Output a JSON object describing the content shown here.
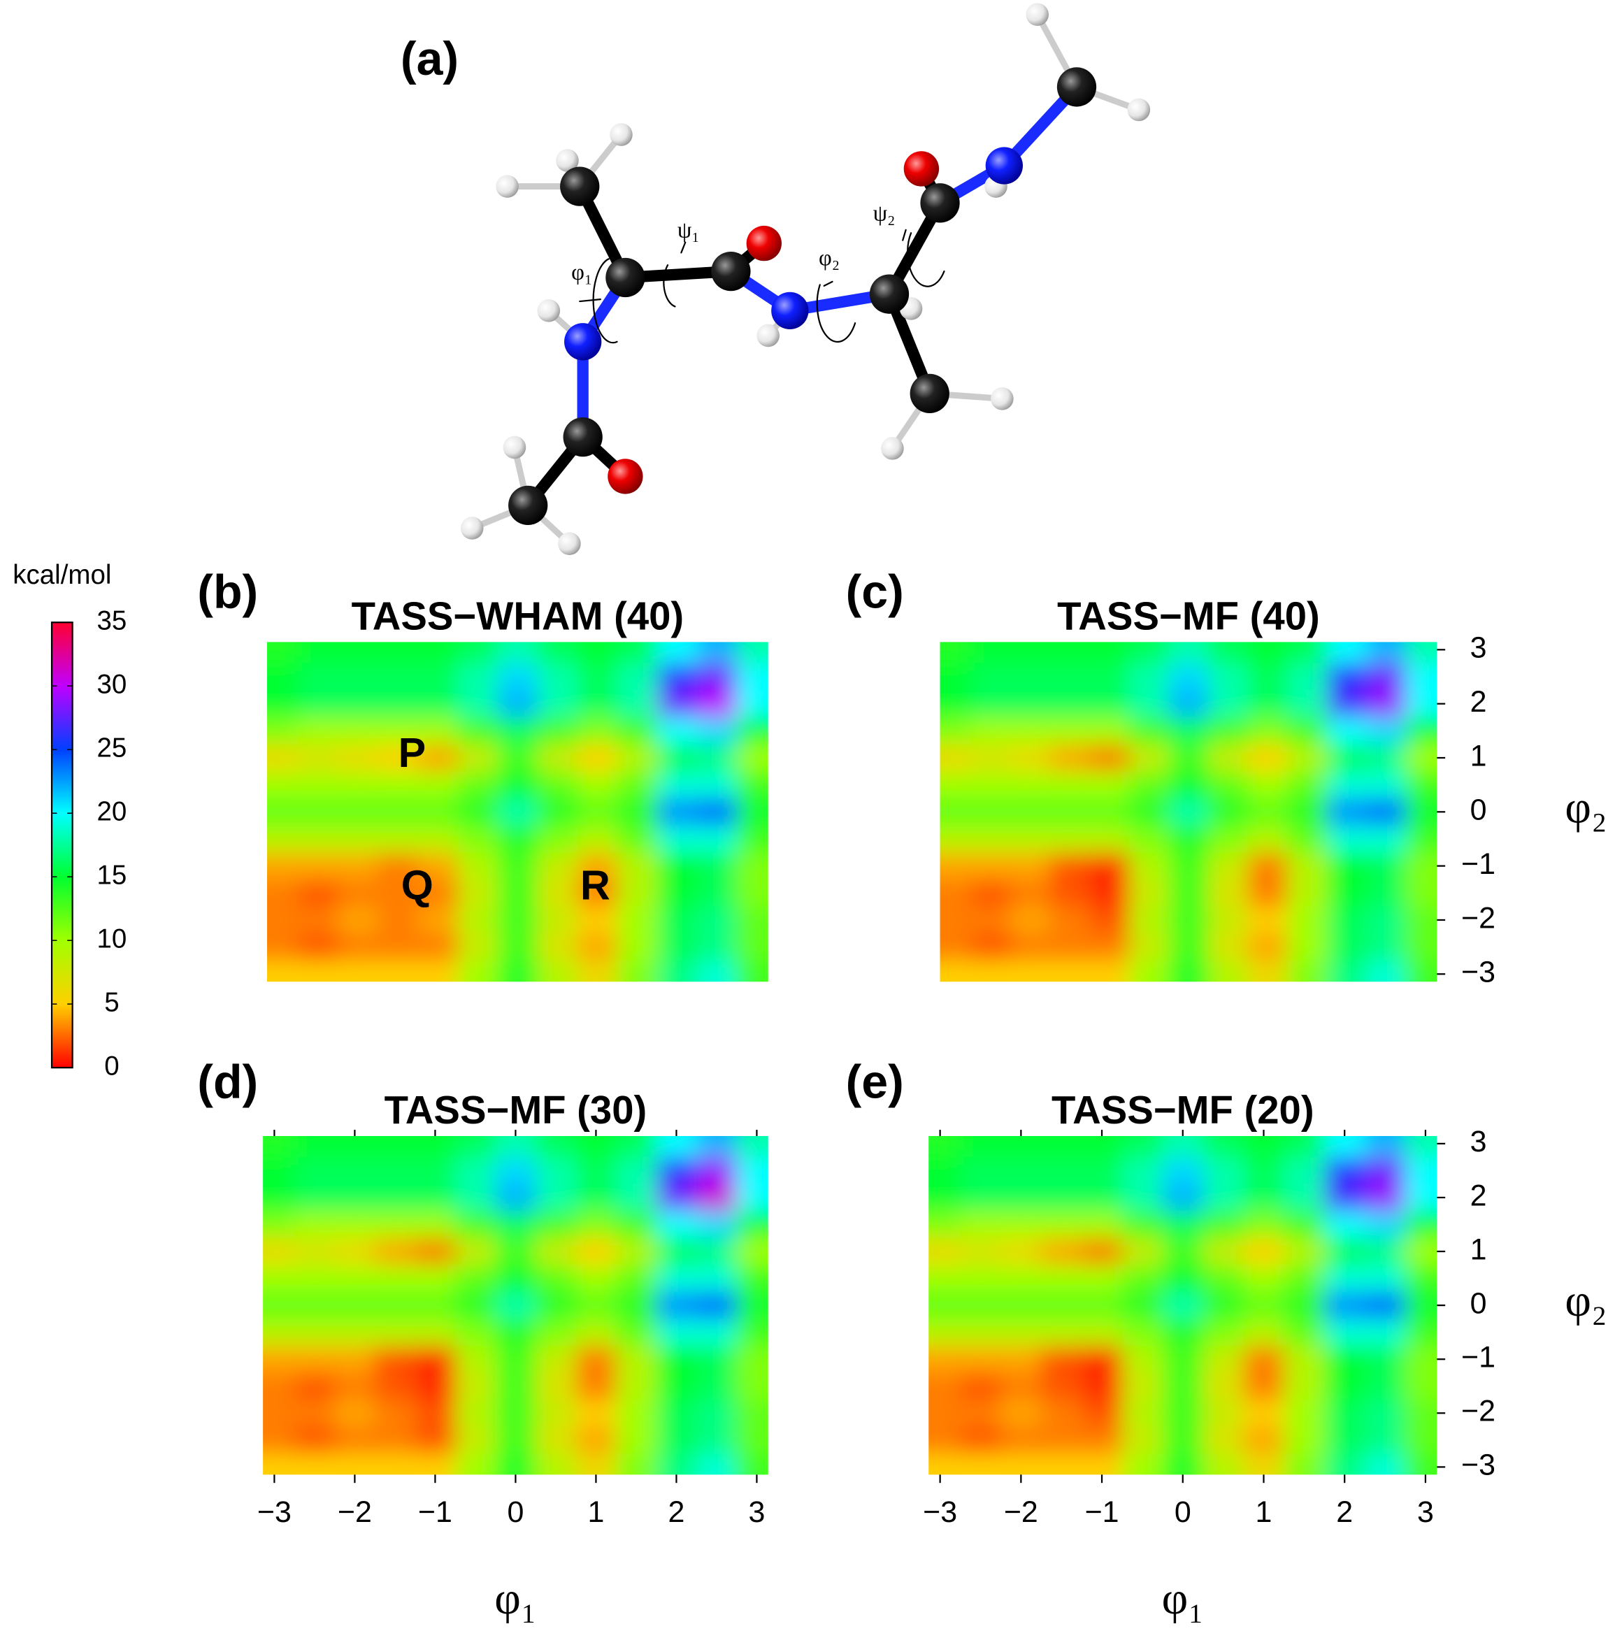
{
  "panel_a": {
    "label": "(a)",
    "torsion_labels": [
      "ψ₁",
      "φ₁",
      "φ₂",
      "ψ₂"
    ]
  },
  "colorbar": {
    "label": "kcal/mol",
    "lim": [
      0,
      35
    ],
    "ticks": [
      0,
      5,
      10,
      15,
      20,
      25,
      30,
      35
    ],
    "colors": [
      "#ff0000",
      "#ffd000",
      "#a0ff00",
      "#00ff30",
      "#00ffff",
      "#0040ff",
      "#c000ff",
      "#ff0030"
    ]
  },
  "chart_data": [
    {
      "type": "contour",
      "panel": "(b)",
      "title": "TASS−WHAM (40)",
      "annotations": [
        "P",
        "Q",
        "R"
      ],
      "xlim": [
        -3.1416,
        3.1416
      ],
      "ylim": [
        -3.1416,
        3.1416
      ],
      "x": [
        -3,
        -2.5,
        -2,
        -1.5,
        -1,
        -0.5,
        0,
        0.5,
        1,
        1.5,
        2,
        2.5,
        3
      ],
      "y": [
        3,
        2.5,
        2,
        1.5,
        1,
        0.5,
        0,
        -0.5,
        -1,
        -1.5,
        -2,
        -2.5,
        -3
      ],
      "z": [
        [
          14,
          15,
          15,
          15,
          15,
          16,
          18,
          16,
          15,
          16,
          20,
          22,
          18
        ],
        [
          15,
          16,
          16,
          16,
          16,
          18,
          21,
          18,
          16,
          18,
          26,
          28,
          20
        ],
        [
          15,
          16,
          16,
          16,
          16,
          18,
          22,
          18,
          16,
          18,
          28,
          30,
          20
        ],
        [
          11,
          10,
          10,
          10,
          10,
          13,
          16,
          13,
          11,
          13,
          20,
          21,
          15
        ],
        [
          6,
          7,
          6,
          5,
          4,
          8,
          13,
          8,
          5,
          9,
          16,
          17,
          10
        ],
        [
          10,
          10,
          10,
          10,
          10,
          12,
          15,
          12,
          10,
          12,
          19,
          19,
          13
        ],
        [
          12,
          12,
          12,
          12,
          12,
          14,
          18,
          14,
          12,
          14,
          23,
          24,
          15
        ],
        [
          9,
          9,
          9,
          9,
          9,
          11,
          14,
          11,
          9,
          12,
          19,
          19,
          13
        ],
        [
          4,
          4,
          4,
          3,
          4,
          9,
          13,
          8,
          4,
          9,
          15,
          16,
          11
        ],
        [
          3,
          2,
          3,
          3,
          3,
          8,
          13,
          7,
          3,
          9,
          15,
          16,
          11
        ],
        [
          3,
          3,
          4,
          3,
          4,
          9,
          13,
          8,
          5,
          10,
          16,
          17,
          12
        ],
        [
          3,
          2,
          3,
          3,
          3,
          8,
          13,
          7,
          4,
          10,
          16,
          17,
          12
        ],
        [
          5,
          5,
          5,
          5,
          5,
          10,
          14,
          9,
          6,
          11,
          17,
          19,
          13
        ]
      ]
    },
    {
      "type": "contour",
      "panel": "(c)",
      "title": "TASS−MF (40)",
      "ylabel": "φ₂",
      "xlim": [
        -3.1416,
        3.1416
      ],
      "ylim": [
        -3.1416,
        3.1416
      ],
      "yticks": [
        {
          "value": -3,
          "label": "−3"
        },
        {
          "value": -2,
          "label": "−2"
        },
        {
          "value": -1,
          "label": "−1"
        },
        0,
        1,
        2,
        3
      ],
      "x": [
        -3,
        -2.5,
        -2,
        -1.5,
        -1,
        -0.5,
        0,
        0.5,
        1,
        1.5,
        2,
        2.5,
        3
      ],
      "y": [
        3,
        2.5,
        2,
        1.5,
        1,
        0.5,
        0,
        -0.5,
        -1,
        -1.5,
        -2,
        -2.5,
        -3
      ],
      "z": [
        [
          14,
          15,
          15,
          15,
          15,
          16,
          18,
          16,
          15,
          16,
          20,
          22,
          18
        ],
        [
          15,
          16,
          16,
          16,
          16,
          18,
          21,
          18,
          16,
          18,
          26,
          28,
          20
        ],
        [
          15,
          16,
          16,
          16,
          16,
          18,
          22,
          18,
          16,
          18,
          27,
          29,
          20
        ],
        [
          11,
          10,
          10,
          10,
          10,
          13,
          16,
          13,
          11,
          13,
          20,
          21,
          15
        ],
        [
          6,
          7,
          6,
          4,
          3,
          8,
          13,
          8,
          5,
          9,
          16,
          17,
          10
        ],
        [
          10,
          10,
          10,
          10,
          10,
          12,
          15,
          12,
          10,
          12,
          19,
          19,
          13
        ],
        [
          12,
          12,
          12,
          12,
          12,
          14,
          18,
          14,
          12,
          14,
          23,
          24,
          15
        ],
        [
          9,
          9,
          9,
          9,
          9,
          11,
          14,
          11,
          9,
          12,
          19,
          19,
          13
        ],
        [
          4,
          4,
          4,
          2,
          1,
          9,
          13,
          8,
          3,
          9,
          15,
          16,
          11
        ],
        [
          3,
          2,
          3,
          2,
          1,
          8,
          13,
          7,
          3,
          9,
          15,
          16,
          11
        ],
        [
          3,
          3,
          4,
          3,
          2,
          9,
          13,
          8,
          5,
          10,
          16,
          17,
          12
        ],
        [
          3,
          2,
          3,
          3,
          3,
          8,
          13,
          7,
          4,
          10,
          16,
          17,
          12
        ],
        [
          5,
          5,
          5,
          5,
          5,
          10,
          14,
          9,
          6,
          11,
          17,
          19,
          13
        ]
      ]
    },
    {
      "type": "contour",
      "panel": "(d)",
      "title": "TASS−MF (30)",
      "xlabel": "φ₁",
      "xlim": [
        -3.1416,
        3.1416
      ],
      "ylim": [
        -3.1416,
        3.1416
      ],
      "xticks": [
        {
          "value": -3,
          "label": "−3"
        },
        {
          "value": -2,
          "label": "−2"
        },
        {
          "value": -1,
          "label": "−1"
        },
        0,
        1,
        2,
        3
      ],
      "x": [
        -3,
        -2.5,
        -2,
        -1.5,
        -1,
        -0.5,
        0,
        0.5,
        1,
        1.5,
        2,
        2.5,
        3
      ],
      "y": [
        3,
        2.5,
        2,
        1.5,
        1,
        0.5,
        0,
        -0.5,
        -1,
        -1.5,
        -2,
        -2.5,
        -3
      ],
      "z": [
        [
          14,
          15,
          15,
          15,
          15,
          16,
          18,
          16,
          15,
          16,
          20,
          22,
          18
        ],
        [
          15,
          16,
          16,
          16,
          16,
          18,
          21,
          18,
          16,
          18,
          26,
          29,
          20
        ],
        [
          15,
          16,
          16,
          16,
          16,
          18,
          22,
          18,
          16,
          18,
          28,
          31,
          20
        ],
        [
          11,
          10,
          10,
          10,
          10,
          13,
          16,
          13,
          11,
          13,
          20,
          21,
          15
        ],
        [
          6,
          7,
          6,
          4,
          3,
          8,
          13,
          8,
          5,
          9,
          16,
          17,
          10
        ],
        [
          10,
          10,
          10,
          10,
          10,
          12,
          15,
          12,
          10,
          12,
          19,
          19,
          13
        ],
        [
          12,
          12,
          12,
          12,
          12,
          14,
          18,
          14,
          12,
          14,
          23,
          24,
          15
        ],
        [
          9,
          9,
          9,
          9,
          9,
          11,
          14,
          11,
          9,
          12,
          19,
          19,
          13
        ],
        [
          4,
          4,
          4,
          2,
          1,
          9,
          13,
          8,
          3,
          9,
          15,
          16,
          11
        ],
        [
          3,
          2,
          3,
          2,
          1,
          8,
          13,
          7,
          3,
          9,
          15,
          16,
          11
        ],
        [
          3,
          3,
          4,
          3,
          2,
          9,
          13,
          8,
          5,
          10,
          16,
          17,
          12
        ],
        [
          3,
          2,
          3,
          3,
          2,
          8,
          13,
          7,
          4,
          10,
          16,
          17,
          12
        ],
        [
          5,
          5,
          5,
          5,
          5,
          10,
          14,
          9,
          6,
          11,
          17,
          19,
          13
        ]
      ]
    },
    {
      "type": "contour",
      "panel": "(e)",
      "title": "TASS−MF (20)",
      "xlabel": "φ₁",
      "ylabel": "φ₂",
      "xlim": [
        -3.1416,
        3.1416
      ],
      "ylim": [
        -3.1416,
        3.1416
      ],
      "xticks": [
        {
          "value": -3,
          "label": "−3"
        },
        {
          "value": -2,
          "label": "−2"
        },
        {
          "value": -1,
          "label": "−1"
        },
        0,
        1,
        2,
        3
      ],
      "yticks": [
        {
          "value": -3,
          "label": "−3"
        },
        {
          "value": -2,
          "label": "−2"
        },
        {
          "value": -1,
          "label": "−1"
        },
        0,
        1,
        2,
        3
      ],
      "x": [
        -3,
        -2.5,
        -2,
        -1.5,
        -1,
        -0.5,
        0,
        0.5,
        1,
        1.5,
        2,
        2.5,
        3
      ],
      "y": [
        3,
        2.5,
        2,
        1.5,
        1,
        0.5,
        0,
        -0.5,
        -1,
        -1.5,
        -2,
        -2.5,
        -3
      ],
      "z": [
        [
          14,
          15,
          15,
          15,
          15,
          16,
          18,
          16,
          15,
          16,
          20,
          22,
          18
        ],
        [
          15,
          16,
          16,
          16,
          16,
          18,
          21,
          18,
          16,
          18,
          26,
          28,
          20
        ],
        [
          15,
          16,
          16,
          16,
          16,
          18,
          22,
          18,
          16,
          18,
          27,
          29,
          20
        ],
        [
          11,
          10,
          10,
          10,
          10,
          13,
          16,
          13,
          11,
          13,
          20,
          21,
          15
        ],
        [
          6,
          7,
          6,
          4,
          3,
          8,
          13,
          8,
          5,
          9,
          16,
          17,
          10
        ],
        [
          10,
          10,
          10,
          10,
          10,
          12,
          15,
          12,
          10,
          12,
          19,
          19,
          13
        ],
        [
          12,
          12,
          12,
          12,
          12,
          14,
          18,
          14,
          12,
          14,
          23,
          24,
          15
        ],
        [
          9,
          9,
          9,
          9,
          9,
          11,
          14,
          11,
          9,
          12,
          19,
          19,
          13
        ],
        [
          4,
          4,
          4,
          2,
          1,
          9,
          13,
          8,
          3,
          9,
          15,
          16,
          11
        ],
        [
          3,
          2,
          3,
          2,
          1,
          8,
          13,
          7,
          3,
          9,
          15,
          16,
          11
        ],
        [
          3,
          3,
          4,
          3,
          2,
          9,
          13,
          8,
          5,
          10,
          16,
          17,
          12
        ],
        [
          3,
          2,
          3,
          3,
          3,
          8,
          13,
          7,
          4,
          10,
          16,
          17,
          12
        ],
        [
          5,
          5,
          5,
          5,
          5,
          10,
          14,
          9,
          6,
          11,
          17,
          19,
          13
        ]
      ]
    }
  ]
}
